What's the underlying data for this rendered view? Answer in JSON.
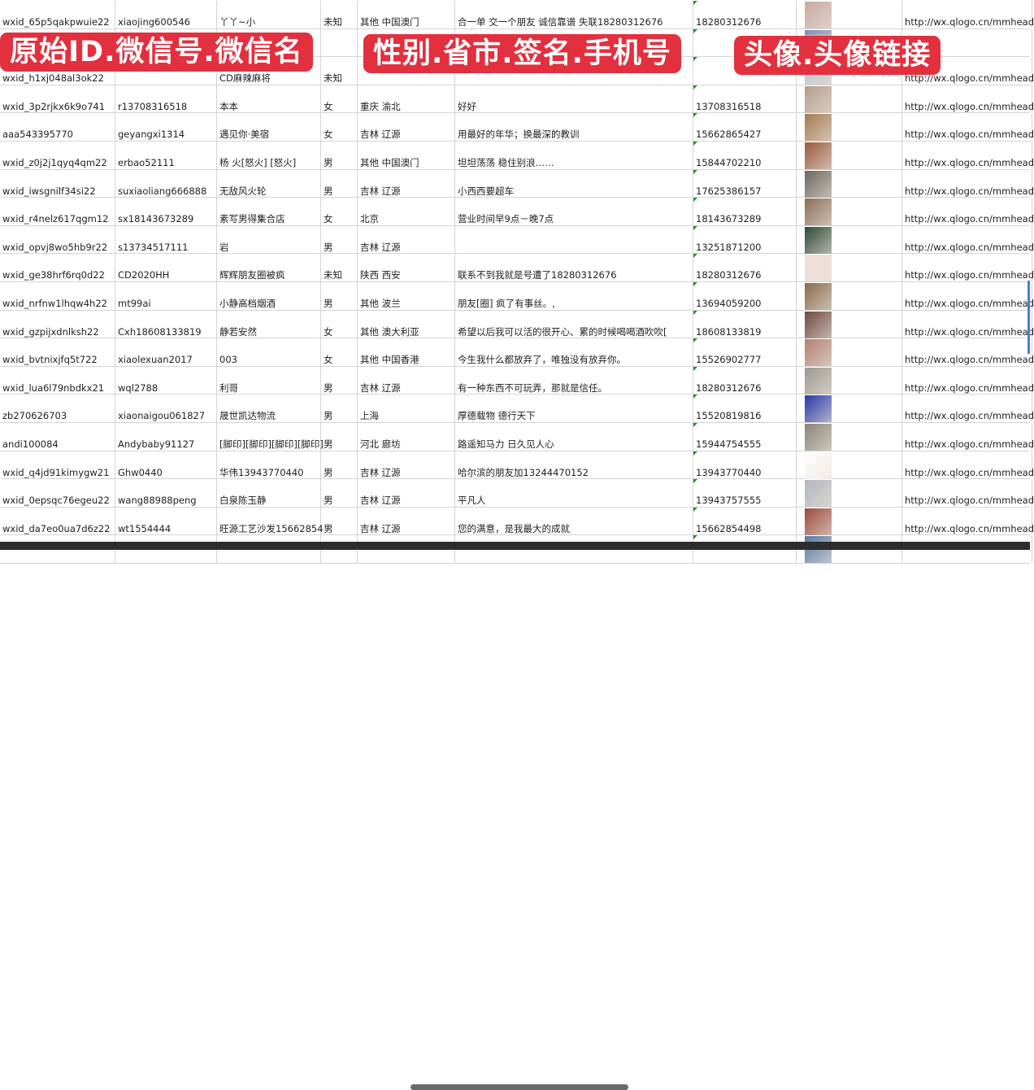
{
  "overlay_labels": [
    "原始ID.微信号.微信名",
    "性别.省市.签名.手机号",
    "头像.头像链接"
  ],
  "colors": {
    "label_bg": "#e2303f",
    "grid": "#d4d4d4",
    "comment_marker": "#2e8b2e"
  },
  "rows": [
    {
      "id": "wxid_65p5qakpwuie22",
      "wechat": "xiaojing600546",
      "name": "丫丫~小",
      "gender": "未知",
      "region": "其他 中国澳门",
      "signature": "合一单 交一个朋友 诚信靠谱 失联18280312676",
      "phone": "18280312676",
      "avatar": "#c9a9a0",
      "link": "http://wx.qlogo.cn/mmhead"
    },
    {
      "id": "",
      "wechat": "",
      "name": "",
      "gender": "",
      "region": "",
      "signature": "",
      "phone": "",
      "avatar": "#7d8fb5",
      "link": ""
    },
    {
      "id": "wxid_h1xj048al3ok22",
      "wechat": "",
      "name": "CD麻辣麻将",
      "gender": "未知",
      "region": "",
      "signature": "",
      "phone": "",
      "avatar": "#b8c2d0",
      "link": "http://wx.qlogo.cn/mmhead"
    },
    {
      "id": "wxid_3p2rjkx6k9o741",
      "wechat": "r13708316518",
      "name": "本本",
      "gender": "女",
      "region": "重庆 渝北",
      "signature": "好好",
      "phone": "13708316518",
      "avatar": "#b59c8a",
      "link": "http://wx.qlogo.cn/mmhead"
    },
    {
      "id": "aaa543395770",
      "wechat": "geyangxi1314",
      "name": "遇见你·美宿",
      "gender": "女",
      "region": "吉林 辽源",
      "signature": "用最好的年华；换最深的教训",
      "phone": "15662865427",
      "avatar": "#a47a52",
      "link": "http://wx.qlogo.cn/mmhead"
    },
    {
      "id": "wxid_z0j2j1qyq4qm22",
      "wechat": "erbao52111",
      "name": "杨 火[怒火] [怒火]",
      "gender": "男",
      "region": "其他 中国澳门",
      "signature": "坦坦荡荡 稳住别浪……",
      "phone": "15844702210",
      "avatar": "#9a5a3e",
      "link": "http://wx.qlogo.cn/mmhead"
    },
    {
      "id": "wxid_iwsgnilf34si22",
      "wechat": "suxiaoliang666888",
      "name": "无敌风火轮",
      "gender": "男",
      "region": "吉林 辽源",
      "signature": "小西西要超车",
      "phone": "17625386157",
      "avatar": "#6b6660",
      "link": "http://wx.qlogo.cn/mmhead"
    },
    {
      "id": "wxid_r4nelz617qgm12",
      "wechat": "sx18143673289",
      "name": "素写男得集合店",
      "gender": "女",
      "region": "北京",
      "signature": "营业时间早9点－晚7点",
      "phone": "18143673289",
      "avatar": "#8a6e58",
      "link": "http://wx.qlogo.cn/mmhead"
    },
    {
      "id": "wxid_opvj8wo5hb9r22",
      "wechat": "s13734517111",
      "name": "岩",
      "gender": "男",
      "region": "吉林 辽源",
      "signature": "",
      "phone": "13251871200",
      "avatar": "#2f4a38",
      "link": "http://wx.qlogo.cn/mmhead"
    },
    {
      "id": "wxid_ge38hrf6rq0d22",
      "wechat": "CD2020HH",
      "name": "辉辉朋友圈被疯",
      "gender": "未知",
      "region": "陕西 西安",
      "signature": "联系不到我就是号遭了18280312676",
      "phone": "18280312676",
      "avatar": "#f1ded8",
      "link": "http://wx.qlogo.cn/mmhead"
    },
    {
      "id": "wxid_nrfnw1lhqw4h22",
      "wechat": "mt99ai",
      "name": "小静高档烟酒",
      "gender": "男",
      "region": "其他 波兰",
      "signature": "朋友[圈] 疯了有事丝。,",
      "phone": "13694059200",
      "avatar": "#8a6a4a",
      "link": "http://wx.qlogo.cn/mmhead"
    },
    {
      "id": "wxid_gzpijxdnlksh22",
      "wechat": "Cxh18608133819",
      "name": "静若安然",
      "gender": "女",
      "region": "其他 澳大利亚",
      "signature": "希望以后我可以活的很开心、累的时候喝喝酒吹吹[",
      "phone": "18608133819",
      "avatar": "#6e4a40",
      "link": "http://wx.qlogo.cn/mmhead"
    },
    {
      "id": "wxid_bvtnixjfq5t722",
      "wechat": "xiaolexuan2017",
      "name": "003",
      "gender": "女",
      "region": "其他 中国香港",
      "signature": "今生我什么都放弃了，唯独没有放弃你。",
      "phone": "15526902777",
      "avatar": "#b08070",
      "link": "http://wx.qlogo.cn/mmhead"
    },
    {
      "id": "wxid_lua6l79nbdkx21",
      "wechat": "wql2788",
      "name": "利哥",
      "gender": "男",
      "region": "吉林 辽源",
      "signature": "有一种东西不可玩弄，那就是信任。",
      "phone": "18280312676",
      "avatar": "#9a9a90",
      "link": "http://wx.qlogo.cn/mmhead"
    },
    {
      "id": "zb270626703",
      "wechat": "xiaonaigou061827",
      "name": "晟世凯达物流",
      "gender": "男",
      "region": "上海",
      "signature": "厚德载物 德行天下",
      "phone": "15520819816",
      "avatar": "#2a3aa8",
      "link": "http://wx.qlogo.cn/mmhead"
    },
    {
      "id": "andi100084",
      "wechat": "Andybaby91127",
      "name": "[脚印][脚印][脚印][脚印]",
      "gender": "男",
      "region": "河北 廊坊",
      "signature": "路遥知马力 日久见人心",
      "phone": "15944754555",
      "avatar": "#8a8478",
      "link": "http://wx.qlogo.cn/mmhead"
    },
    {
      "id": "wxid_q4jd91kimygw21",
      "wechat": "Ghw0440",
      "name": "华伟13943770440",
      "gender": "男",
      "region": "吉林 辽源",
      "signature": "哈尔滨的朋友加13244470152",
      "phone": "13943770440",
      "avatar": "#ffffff",
      "link": "http://wx.qlogo.cn/mmhead"
    },
    {
      "id": "wxid_0epsqc76egeu22",
      "wechat": "wang88988peng",
      "name": "白泉陈玉静",
      "gender": "男",
      "region": "吉林 辽源",
      "signature": "平凡人",
      "phone": "13943757555",
      "avatar": "#b0b8c0",
      "link": "http://wx.qlogo.cn/mmhead"
    },
    {
      "id": "wxid_da7eo0ua7d6z22",
      "wechat": "wt1554444",
      "name": "旺源工艺沙发15662854",
      "gender": "男",
      "region": "吉林 辽源",
      "signature": "您的满意，是我最大的成就",
      "phone": "15662854498",
      "avatar": "#9a4a3a",
      "link": "http://wx.qlogo.cn/mmhead"
    },
    {
      "id": "",
      "wechat": "",
      "name": "",
      "gender": "",
      "region": "",
      "signature": "",
      "phone": "",
      "avatar": "#5a7aa8",
      "link": ""
    }
  ]
}
